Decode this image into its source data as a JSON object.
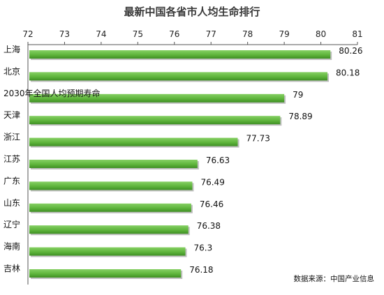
{
  "chart_data": {
    "type": "bar",
    "orientation": "horizontal",
    "title": "最新中国各省市人均生命排行",
    "categories": [
      "上海",
      "北京",
      "2030年全国人均预期寿命",
      "天津",
      "浙江",
      "江苏",
      "广东",
      "山东",
      "辽宁",
      "海南",
      "吉林"
    ],
    "values": [
      80.26,
      80.18,
      79,
      78.89,
      77.73,
      76.63,
      76.49,
      76.46,
      76.38,
      76.3,
      76.18
    ],
    "value_labels": [
      "80.26",
      "80.18",
      "79",
      "78.89",
      "77.73",
      "76.63",
      "76.49",
      "76.46",
      "76.38",
      "76.3",
      "76.18"
    ],
    "x_ticks": [
      "72",
      "73",
      "74",
      "75",
      "76",
      "77",
      "78",
      "79",
      "80",
      "81"
    ],
    "xlim": [
      72,
      81
    ],
    "axis_position": "top",
    "grid": false,
    "bar_color": "#66bb44"
  },
  "source": "数据来源：中国产业信息"
}
